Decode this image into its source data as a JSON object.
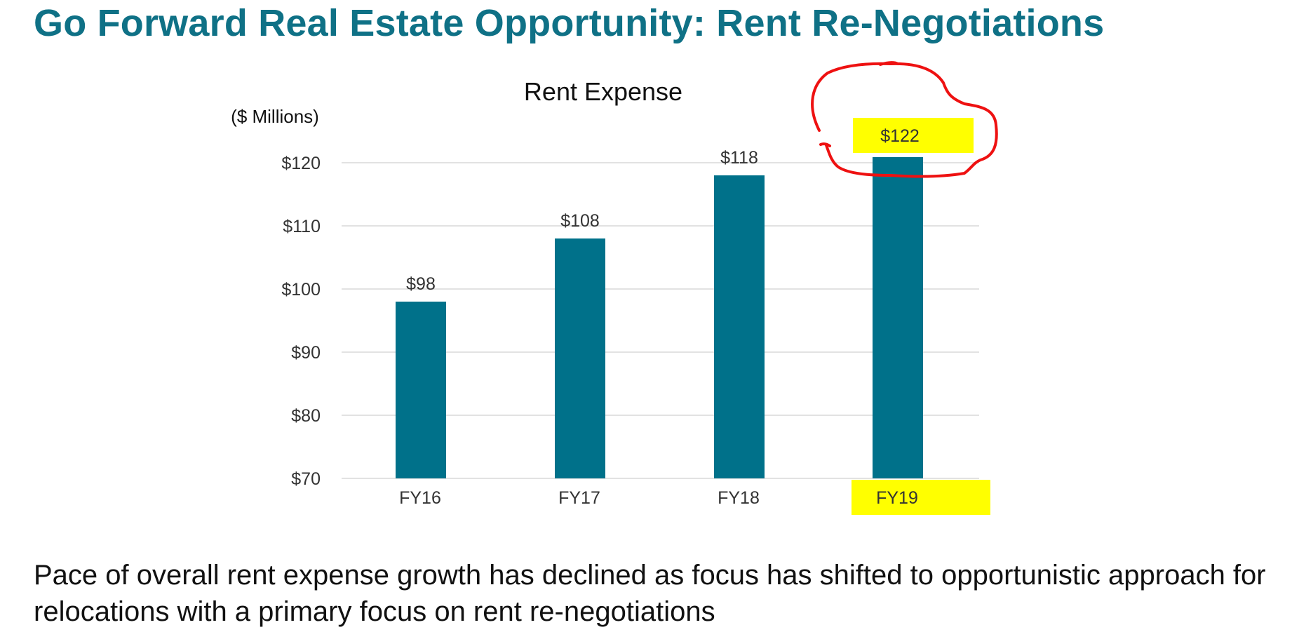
{
  "slide": {
    "title": "Go Forward Real Estate Opportunity: Rent Re-Negotiations",
    "body": "Pace of overall rent expense growth has declined as focus has shifted to opportunistic approach for relocations with a primary focus on rent re-negotiations"
  },
  "colors": {
    "title": "#0f7186",
    "bar": "#00718a",
    "highlight": "#ffff00",
    "annotation": "#ee1111",
    "gridline": "#d9d9d9"
  },
  "chart_data": {
    "type": "bar",
    "title": "Rent Expense",
    "units_label": "($ Millions)",
    "categories": [
      "FY16",
      "FY17",
      "FY18",
      "FY19"
    ],
    "values": [
      98,
      108,
      118,
      122
    ],
    "data_labels": [
      "$98",
      "$108",
      "$118",
      "$122"
    ],
    "ylim": [
      70,
      120
    ],
    "yticks": [
      70,
      80,
      90,
      100,
      110,
      120
    ],
    "ytick_labels": [
      "$70",
      "$80",
      "$90",
      "$100",
      "$110",
      "$120"
    ],
    "grid": true,
    "legend": "none",
    "annotations": {
      "highlighted_category": "FY19",
      "highlighted_value_label": "$122",
      "hand_drawn_circle_around": "$122"
    }
  }
}
